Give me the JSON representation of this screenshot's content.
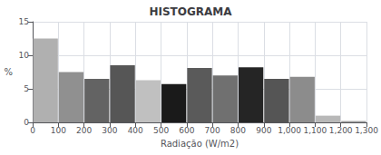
{
  "chart_data": {
    "type": "histogram",
    "title": "HISTOGRAMA",
    "xlabel": "Radiação (W/m2)",
    "ylabel": "%",
    "bins": [
      0,
      100,
      200,
      300,
      400,
      500,
      600,
      700,
      800,
      900,
      1000,
      1100,
      1200,
      1300
    ],
    "values": [
      12.5,
      7.5,
      6.5,
      8.5,
      6.3,
      5.7,
      8.1,
      7.0,
      8.2,
      6.5,
      6.8,
      1.0,
      0.2
    ],
    "colors": [
      "#b0b0b0",
      "#909090",
      "#636363",
      "#565656",
      "#c0c0c0",
      "#1a1a1a",
      "#5a5a5a",
      "#707070",
      "#252525",
      "#555555",
      "#8c8c8c",
      "#b8b8b8",
      "#a0a0a0"
    ],
    "xlim": [
      0,
      1300
    ],
    "xticks": [
      0,
      100,
      200,
      300,
      400,
      500,
      600,
      700,
      800,
      900,
      1000,
      1100,
      1200,
      1300
    ],
    "ylim": [
      0,
      15
    ],
    "yticks": [
      0,
      5,
      10,
      15
    ],
    "grid": true
  }
}
